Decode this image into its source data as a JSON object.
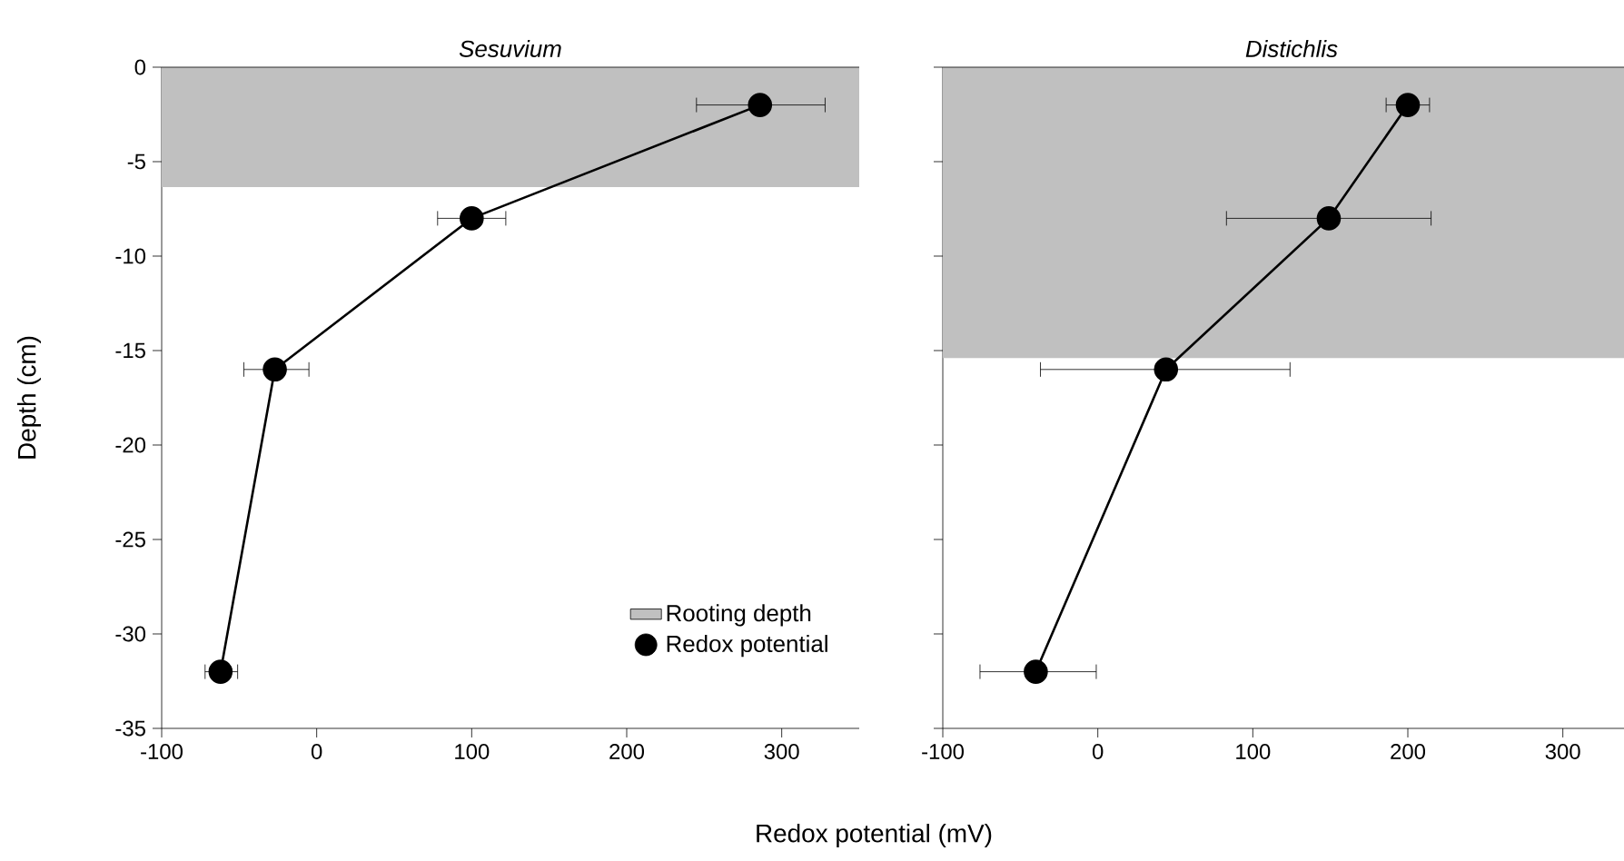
{
  "chart_data": [
    {
      "type": "line",
      "title": "Sesuvium",
      "xlabel": "Redox potential (mV)",
      "ylabel": "Depth (cm)",
      "xlim": [
        -100,
        350
      ],
      "ylim": [
        -35,
        0
      ],
      "xticks": [
        -100,
        0,
        100,
        200,
        300
      ],
      "yticks": [
        -35,
        -30,
        -25,
        -20,
        -15,
        -10,
        -5,
        0
      ],
      "marker": "circle",
      "legend": "bottom right",
      "bands": [
        {
          "axis": "y",
          "from": -6.35,
          "to": 0,
          "label": "Rooting depth",
          "color": "#c0c0c0"
        }
      ],
      "series": [
        {
          "name": "Redox potential",
          "color": "#000000",
          "x": [
            286,
            100,
            -27,
            -62
          ],
          "values": [
            -2,
            -8,
            -16,
            -32
          ],
          "xerrors": [
            [
              245,
              328
            ],
            [
              78,
              122
            ],
            [
              -47,
              -5
            ],
            [
              -72,
              -51
            ]
          ]
        }
      ]
    },
    {
      "type": "line",
      "title": "Distichlis",
      "xlim": [
        -100,
        350
      ],
      "ylim": [
        -35,
        0
      ],
      "xticks": [
        -100,
        0,
        100,
        200,
        300
      ],
      "yticks": [
        -35,
        -30,
        -25,
        -20,
        -15,
        -10,
        -5,
        0
      ],
      "marker": "circle",
      "tick_labels": "x",
      "bands": [
        {
          "axis": "y",
          "from": -15.4,
          "to": 0,
          "color": "#c0c0c0"
        }
      ],
      "series": [
        {
          "color": "#000000",
          "x": [
            200,
            149,
            44,
            -40
          ],
          "values": [
            -2,
            -8,
            -16,
            -32
          ],
          "xerrors": [
            [
              186,
              214
            ],
            [
              83,
              215
            ],
            [
              -37,
              124
            ],
            [
              -76,
              -1
            ]
          ]
        }
      ]
    }
  ]
}
